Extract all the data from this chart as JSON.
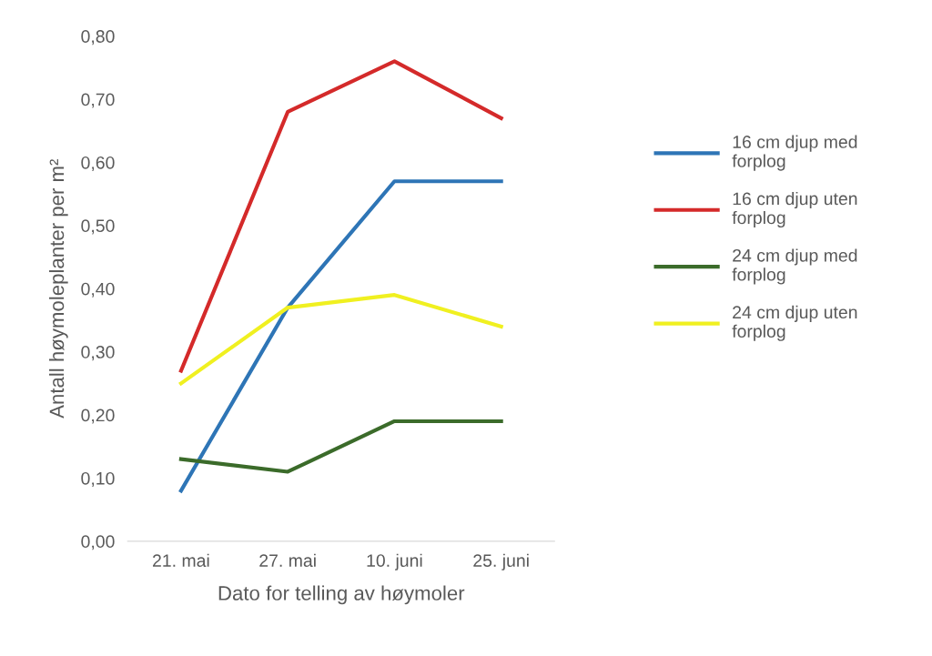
{
  "chart_data": {
    "type": "line",
    "xlabel": "Dato for telling av høymoler",
    "ylabel": "Antall høymoleplanter per m²",
    "categories": [
      "21. mai",
      "27. mai",
      "10. juni",
      "25. juni"
    ],
    "series": [
      {
        "name": "16 cm djup med\nforplog",
        "color": "#2e75b6",
        "values": [
          0.08,
          0.37,
          0.57,
          0.57
        ]
      },
      {
        "name": "16 cm djup uten\nforplog",
        "color": "#d42a2a",
        "values": [
          0.27,
          0.68,
          0.76,
          0.67
        ]
      },
      {
        "name": "24 cm djup med\nforplog",
        "color": "#3b6b2a",
        "values": [
          0.13,
          0.11,
          0.19,
          0.19
        ]
      },
      {
        "name": "24 cm djup uten\nforplog",
        "color": "#f0f020",
        "values": [
          0.25,
          0.37,
          0.39,
          0.34
        ]
      }
    ],
    "ylim": [
      0,
      0.8
    ],
    "yticks": [
      {
        "value": 0,
        "label": "0,00"
      },
      {
        "value": 0.1,
        "label": "0,10"
      },
      {
        "value": 0.2,
        "label": "0,20"
      },
      {
        "value": 0.3,
        "label": "0,30"
      },
      {
        "value": 0.4,
        "label": "0,40"
      },
      {
        "value": 0.5,
        "label": "0,50"
      },
      {
        "value": 0.6,
        "label": "0,60"
      },
      {
        "value": 0.7,
        "label": "0,70"
      },
      {
        "value": 0.8,
        "label": "0,80"
      }
    ],
    "grid": false,
    "legend": "right",
    "marker": "none",
    "line_style": "solid"
  }
}
